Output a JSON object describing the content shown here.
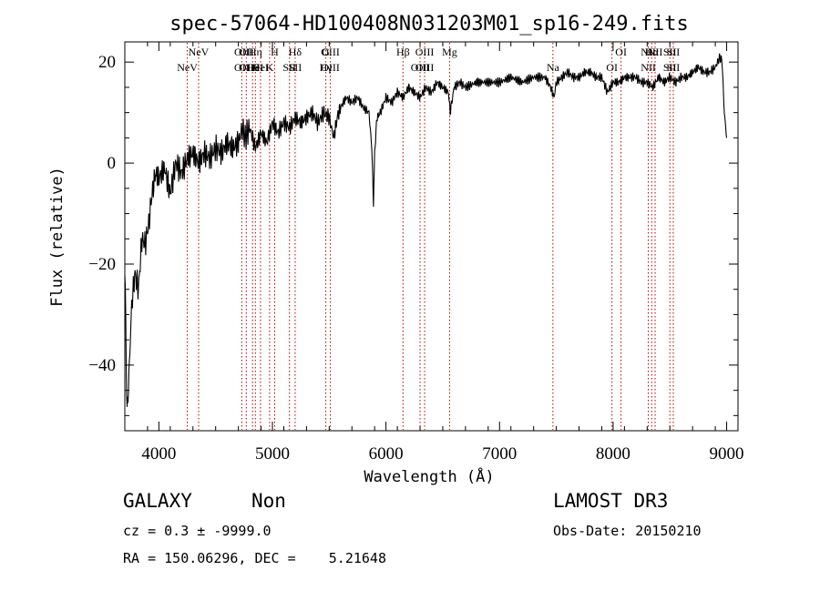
{
  "chart_data": {
    "type": "line",
    "title": "spec-57064-HD100408N031203M01_sp16-249.fits",
    "xlabel": "Wavelength (Å)",
    "ylabel": "Flux (relative)",
    "xlim": [
      3700,
      9100
    ],
    "ylim": [
      -53,
      24
    ],
    "xticks": [
      4000,
      5000,
      6000,
      7000,
      8000,
      9000
    ],
    "yticks": [
      -40,
      -20,
      0,
      20
    ],
    "x_tick_labels": [
      "4000",
      "5000",
      "6000",
      "7000",
      "8000",
      "9000"
    ],
    "y_tick_labels": [
      "−40",
      "−20",
      "0",
      "20"
    ],
    "line_color": "#000000",
    "marker_color": "#b30000",
    "series": [
      {
        "x": [
          3700,
          3720,
          3740,
          3760,
          3790,
          3820,
          3850,
          3880,
          3910,
          3940,
          3970,
          4000,
          4050,
          4100,
          4150,
          4200,
          4250,
          4300,
          4350,
          4400,
          4450,
          4500,
          4550,
          4600,
          4650,
          4700,
          4735,
          4760,
          4800,
          4850,
          4900,
          4950,
          5000,
          5050,
          5100,
          5150,
          5200,
          5250,
          5300,
          5350,
          5400,
          5450,
          5500,
          5540,
          5570,
          5600,
          5650,
          5700,
          5750,
          5800,
          5850,
          5875,
          5890,
          5900,
          5920,
          5950,
          6000,
          6050,
          6100,
          6150,
          6200,
          6250,
          6300,
          6350,
          6400,
          6450,
          6500,
          6550,
          6565,
          6600,
          6650,
          6700,
          6800,
          6900,
          7000,
          7100,
          7200,
          7300,
          7400,
          7450,
          7480,
          7500,
          7550,
          7600,
          7650,
          7700,
          7750,
          7800,
          7850,
          7900,
          7950,
          8000,
          8050,
          8100,
          8150,
          8200,
          8250,
          8300,
          8350,
          8400,
          8450,
          8500,
          8550,
          8600,
          8650,
          8700,
          8750,
          8800,
          8850,
          8900,
          8940,
          8960,
          8980,
          9000
        ],
        "y": [
          -20,
          -50,
          -40,
          -28,
          -22,
          -25,
          -15,
          -16,
          -12,
          -6,
          -2,
          -3,
          -1,
          -6,
          0,
          -2,
          1,
          2,
          0,
          2,
          1,
          3,
          2,
          4,
          3,
          4,
          7,
          5,
          7,
          3,
          6,
          4,
          8,
          6,
          8,
          7,
          9,
          8,
          9,
          10,
          8,
          10,
          9,
          5,
          9,
          11,
          13,
          12,
          13,
          11,
          10,
          3,
          -8,
          2,
          9,
          10,
          13,
          12,
          14,
          13,
          15,
          14,
          13,
          15,
          14,
          16,
          15,
          14,
          10,
          15,
          16,
          15,
          16,
          16,
          16,
          17,
          16,
          17,
          17,
          15,
          13,
          16,
          17,
          18,
          17,
          17,
          18,
          18,
          17,
          17,
          14,
          16,
          16,
          17,
          17,
          17,
          16,
          16,
          15,
          17,
          16,
          17,
          16,
          17,
          17,
          18,
          19,
          18,
          18,
          19,
          21,
          20,
          10,
          5
        ]
      }
    ],
    "lines": [
      {
        "w": 4250,
        "top": "",
        "bot": "NeV"
      },
      {
        "w": 4350,
        "top": "NeV",
        "bot": ""
      },
      {
        "w": 4730,
        "top": "OII",
        "bot": "OII"
      },
      {
        "w": 4770,
        "top": "OII",
        "bot": "OII"
      },
      {
        "w": 4825,
        "top": "",
        "bot": "Hθ"
      },
      {
        "w": 4850,
        "top": "Hη",
        "bot": "HeI"
      },
      {
        "w": 4895,
        "top": "",
        "bot": "HeI"
      },
      {
        "w": 4975,
        "top": "",
        "bot": "K"
      },
      {
        "w": 5020,
        "top": "H",
        "bot": ""
      },
      {
        "w": 5150,
        "top": "",
        "bot": "SII"
      },
      {
        "w": 5200,
        "top": "Hδ",
        "bot": "SII"
      },
      {
        "w": 5470,
        "top": "G",
        "bot": "Hγ"
      },
      {
        "w": 5510,
        "top": "OIII",
        "bot": "OIII"
      },
      {
        "w": 6150,
        "top": "Hβ",
        "bot": ""
      },
      {
        "w": 6300,
        "top": "",
        "bot": "OIII"
      },
      {
        "w": 6340,
        "top": "OIII",
        "bot": "OIII"
      },
      {
        "w": 6560,
        "top": "Mg",
        "bot": ""
      },
      {
        "w": 7470,
        "top": "",
        "bot": "Na"
      },
      {
        "w": 7990,
        "top": "",
        "bot": "OI"
      },
      {
        "w": 8070,
        "top": "OI",
        "bot": ""
      },
      {
        "w": 8310,
        "top": "NII",
        "bot": "NII"
      },
      {
        "w": 8340,
        "top": "Hα",
        "bot": ""
      },
      {
        "w": 8370,
        "top": "NII",
        "bot": ""
      },
      {
        "w": 8500,
        "top": "SII",
        "bot": "SII"
      },
      {
        "w": 8530,
        "top": "SII",
        "bot": "SII"
      }
    ]
  },
  "info": {
    "type_label": "GALAXY",
    "subclass": "Non",
    "survey": "LAMOST DR3",
    "cz": "cz = 0.3 ± -9999.0",
    "obs_date": "Obs-Date: 20150210",
    "radec": "RA = 150.06296, DEC =    5.21648"
  }
}
